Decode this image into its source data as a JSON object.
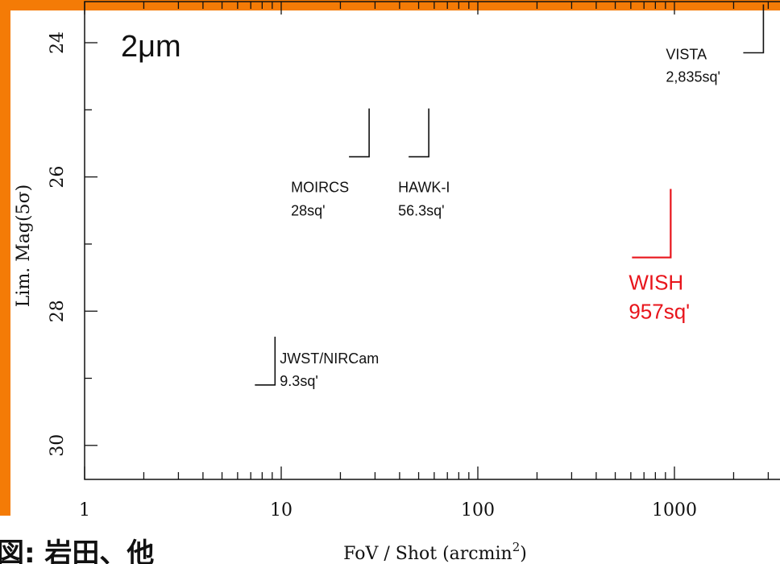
{
  "chart_data": {
    "type": "scatter",
    "title": "2μm",
    "xlabel": "FoV / Shot (arcmin",
    "xlabel_sup": "2",
    "xlabel_close": ")",
    "ylabel": "Lim. Mag(5σ)",
    "x_scale": "log",
    "xlim": [
      1,
      3600
    ],
    "ylim": [
      30.6,
      23.7
    ],
    "y_inverted": true,
    "x_ticks": [
      {
        "value": 1,
        "label": "1"
      },
      {
        "value": 10,
        "label": "10"
      },
      {
        "value": 100,
        "label": "100"
      },
      {
        "value": 1000,
        "label": "1000"
      }
    ],
    "y_ticks": [
      {
        "value": 24,
        "label": "24"
      },
      {
        "value": 26,
        "label": "26"
      },
      {
        "value": 28,
        "label": "28"
      },
      {
        "value": 30,
        "label": "30"
      }
    ],
    "instruments": [
      {
        "name": "MOIRCS",
        "fov_label": "28sq'",
        "fov": 28,
        "mag": 25.7,
        "color": "#111111",
        "highlight": false
      },
      {
        "name": "HAWK-I",
        "fov_label": "56.3sq'",
        "fov": 56.3,
        "mag": 25.7,
        "color": "#111111",
        "highlight": false
      },
      {
        "name": "JWST/NIRCam",
        "fov_label": "9.3sq'",
        "fov": 9.3,
        "mag": 29.1,
        "color": "#111111",
        "highlight": false
      },
      {
        "name": "WISH",
        "fov_label": "957sq'",
        "fov": 957,
        "mag": 27.2,
        "color": "#E8141B",
        "highlight": true
      },
      {
        "name": "VISTA",
        "fov_label": "2,835sq'",
        "fov": 2835,
        "mag": 24.15,
        "color": "#111111",
        "highlight": false
      }
    ],
    "grid": false,
    "legend": "none"
  },
  "credit": "図: 岩田、他",
  "colors": {
    "frame": "#F47B06",
    "highlight": "#E8141B"
  }
}
